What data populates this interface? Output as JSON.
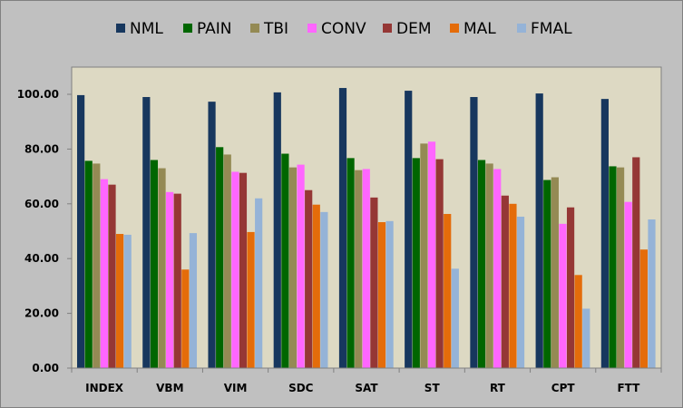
{
  "chart_data": {
    "type": "bar",
    "categories": [
      "INDEX",
      "VBM",
      "VIM",
      "SDC",
      "SAT",
      "ST",
      "RT",
      "CPT",
      "FTT"
    ],
    "series": [
      {
        "name": "NML",
        "color": "#17375e",
        "values": [
          99.7,
          99.0,
          97.3,
          100.7,
          102.3,
          101.3,
          99.0,
          100.3,
          98.3
        ]
      },
      {
        "name": "PAIN",
        "color": "#006600",
        "values": [
          75.7,
          76.0,
          80.7,
          78.3,
          76.7,
          76.7,
          76.0,
          68.7,
          73.7
        ]
      },
      {
        "name": "TBI",
        "color": "#948a54",
        "values": [
          74.7,
          73.0,
          78.0,
          73.3,
          72.3,
          82.0,
          74.7,
          69.7,
          73.3
        ]
      },
      {
        "name": "CONV",
        "color": "#ff66ff",
        "values": [
          69.0,
          64.3,
          71.7,
          74.3,
          72.7,
          82.7,
          72.7,
          52.7,
          60.7
        ]
      },
      {
        "name": "DEM",
        "color": "#953735",
        "values": [
          67.0,
          63.7,
          71.3,
          65.0,
          62.3,
          76.3,
          63.0,
          58.7,
          77.0
        ]
      },
      {
        "name": "MAL",
        "color": "#e46c0a",
        "values": [
          49.0,
          36.0,
          49.7,
          59.7,
          53.3,
          56.3,
          60.0,
          34.0,
          43.3
        ]
      },
      {
        "name": "FMAL",
        "color": "#95b3d7",
        "values": [
          48.7,
          49.3,
          62.0,
          57.0,
          53.7,
          36.3,
          55.3,
          21.7,
          54.3
        ]
      }
    ],
    "ylim": [
      0,
      100
    ],
    "yticks": [
      "0.00",
      "20.00",
      "40.00",
      "60.00",
      "80.00",
      "100.00"
    ],
    "grid": false,
    "legend_position": "top",
    "plot_background": "#ddd9c3",
    "outer_background": "#c0c0c0"
  }
}
